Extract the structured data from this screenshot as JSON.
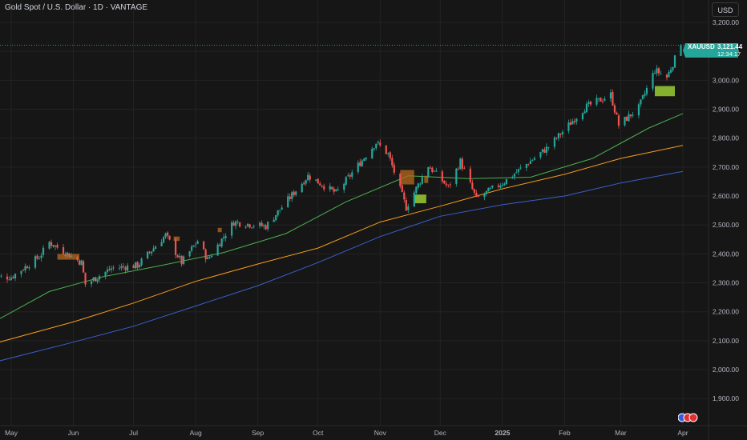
{
  "header": {
    "title": "Gold Spot / U.S. Dollar · 1D · VANTAGE",
    "currency_button": "USD"
  },
  "price_tag": {
    "symbol": "XAUUSD",
    "price": "3,121.44",
    "countdown": "12:34:17"
  },
  "colors": {
    "background": "#161616",
    "up": "#26a69a",
    "down": "#ef5350",
    "ma_fast": "#4caf50",
    "ma_mid": "#f59c1a",
    "ma_slow": "#3a5fcd",
    "grid": "#232323",
    "axis_text": "#b2b5be",
    "zone_orange": "#b56a1e",
    "zone_green": "#9acd32"
  },
  "chart_data": {
    "type": "candlestick",
    "y_axis_ticks": [
      "3,200.00",
      "3,100.00",
      "3,000.00",
      "2,900.00",
      "2,800.00",
      "2,700.00",
      "2,600.00",
      "2,500.00",
      "2,400.00",
      "2,300.00",
      "2,200.00",
      "2,100.00",
      "2,000.00",
      "1,900.00"
    ],
    "x_axis_ticks": [
      "May",
      "Jun",
      "Jul",
      "Aug",
      "Sep",
      "Oct",
      "Nov",
      "Dec",
      "2025",
      "Feb",
      "Mar",
      "Apr"
    ],
    "grid": true,
    "ylim": [
      1865,
      3250
    ],
    "x_axis_dates": [
      "2024-05-01",
      "2024-06-01",
      "2024-07-01",
      "2024-08-01",
      "2024-09-01",
      "2024-10-01",
      "2024-11-01",
      "2024-12-01",
      "2025-01-01",
      "2025-02-01",
      "2025-03-01",
      "2025-04-01"
    ],
    "last_price": 3121.44,
    "price_anchors": [
      [
        "2024-05-01",
        2320
      ],
      [
        "2024-05-15",
        2390
      ],
      [
        "2024-05-20",
        2440
      ],
      [
        "2024-06-05",
        2370
      ],
      [
        "2024-06-07",
        2295
      ],
      [
        "2024-06-20",
        2350
      ],
      [
        "2024-07-03",
        2360
      ],
      [
        "2024-07-17",
        2465
      ],
      [
        "2024-07-25",
        2370
      ],
      [
        "2024-08-02",
        2445
      ],
      [
        "2024-08-07",
        2380
      ],
      [
        "2024-08-20",
        2510
      ],
      [
        "2024-09-05",
        2495
      ],
      [
        "2024-09-26",
        2670
      ],
      [
        "2024-10-10",
        2610
      ],
      [
        "2024-10-30",
        2785
      ],
      [
        "2024-11-05",
        2745
      ],
      [
        "2024-11-14",
        2560
      ],
      [
        "2024-11-25",
        2705
      ],
      [
        "2024-12-05",
        2630
      ],
      [
        "2024-12-11",
        2720
      ],
      [
        "2024-12-19",
        2590
      ],
      [
        "2025-01-02",
        2650
      ],
      [
        "2025-01-24",
        2770
      ],
      [
        "2025-02-11",
        2905
      ],
      [
        "2025-02-24",
        2950
      ],
      [
        "2025-02-28",
        2845
      ],
      [
        "2025-03-10",
        2905
      ],
      [
        "2025-03-18",
        3035
      ],
      [
        "2025-03-24",
        3010
      ],
      [
        "2025-03-31",
        3121.44
      ]
    ],
    "ma_fast": [
      [
        "2024-04-25",
        2175
      ],
      [
        "2024-05-20",
        2270
      ],
      [
        "2024-06-15",
        2320
      ],
      [
        "2024-07-15",
        2360
      ],
      [
        "2024-08-15",
        2405
      ],
      [
        "2024-09-15",
        2470
      ],
      [
        "2024-10-15",
        2580
      ],
      [
        "2024-11-15",
        2670
      ],
      [
        "2024-12-15",
        2660
      ],
      [
        "2025-01-15",
        2665
      ],
      [
        "2025-02-15",
        2730
      ],
      [
        "2025-03-15",
        2835
      ],
      [
        "2025-04-01",
        2885
      ]
    ],
    "ma_mid": [
      [
        "2024-04-25",
        2095
      ],
      [
        "2024-06-01",
        2165
      ],
      [
        "2024-07-01",
        2230
      ],
      [
        "2024-08-01",
        2305
      ],
      [
        "2024-09-01",
        2365
      ],
      [
        "2024-10-01",
        2420
      ],
      [
        "2024-11-01",
        2510
      ],
      [
        "2024-12-01",
        2565
      ],
      [
        "2025-01-01",
        2625
      ],
      [
        "2025-02-01",
        2675
      ],
      [
        "2025-03-01",
        2730
      ],
      [
        "2025-04-01",
        2775
      ]
    ],
    "ma_slow": [
      [
        "2024-04-25",
        2030
      ],
      [
        "2024-06-01",
        2095
      ],
      [
        "2024-07-01",
        2150
      ],
      [
        "2024-08-01",
        2220
      ],
      [
        "2024-09-01",
        2290
      ],
      [
        "2024-10-01",
        2370
      ],
      [
        "2024-11-01",
        2460
      ],
      [
        "2024-12-01",
        2530
      ],
      [
        "2025-01-01",
        2570
      ],
      [
        "2025-02-01",
        2600
      ],
      [
        "2025-03-01",
        2645
      ],
      [
        "2025-04-01",
        2685
      ]
    ],
    "zones": [
      {
        "color": "orange",
        "x0": "2024-05-24",
        "x1": "2024-06-04",
        "y0": 2380,
        "y1": 2400
      },
      {
        "color": "orange",
        "x0": "2024-07-21",
        "x1": "2024-07-24",
        "y0": 2445,
        "y1": 2460
      },
      {
        "color": "orange",
        "x0": "2024-08-12",
        "x1": "2024-08-14",
        "y0": 2475,
        "y1": 2490
      },
      {
        "color": "orange",
        "x0": "2024-11-11",
        "x1": "2024-11-18",
        "y0": 2640,
        "y1": 2690
      },
      {
        "color": "orange",
        "x0": "2024-11-23",
        "x1": "2024-11-25",
        "y0": 2645,
        "y1": 2670
      },
      {
        "color": "green",
        "x0": "2024-11-18",
        "x1": "2024-11-24",
        "y0": 2575,
        "y1": 2605
      },
      {
        "color": "green",
        "x0": "2025-03-18",
        "x1": "2025-03-28",
        "y0": 2945,
        "y1": 2980
      }
    ]
  }
}
